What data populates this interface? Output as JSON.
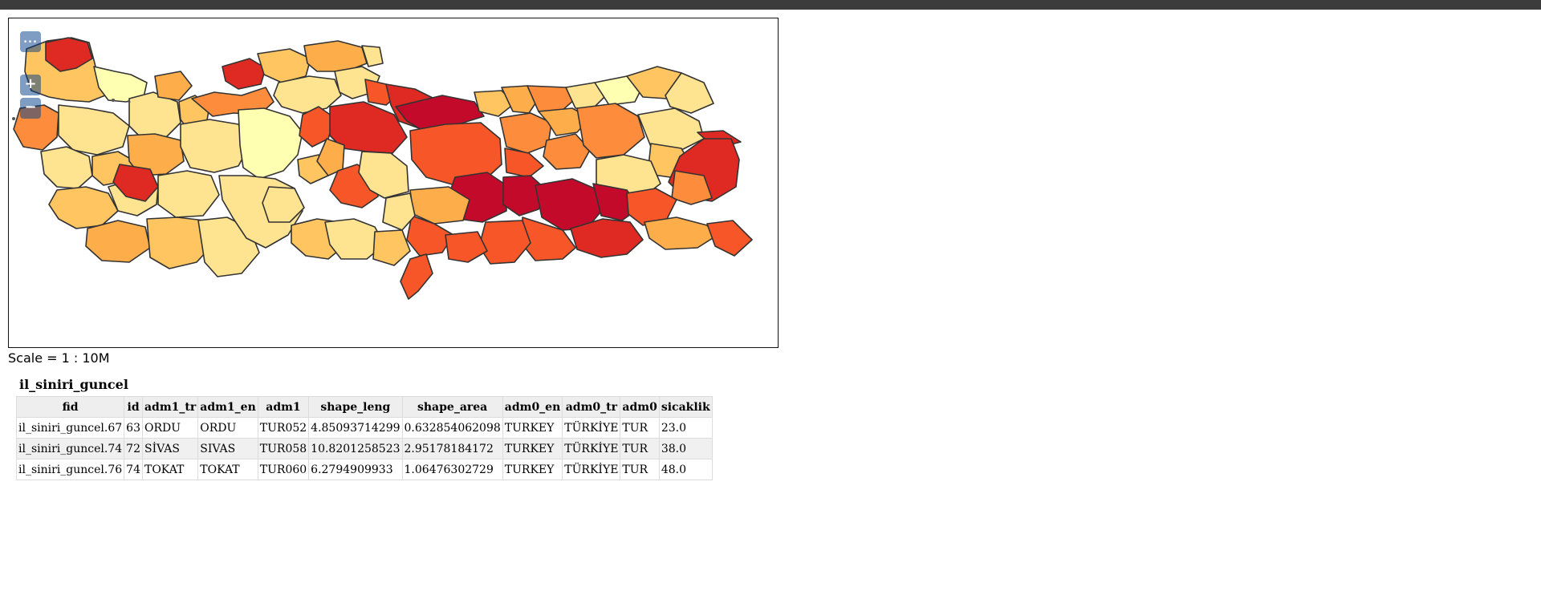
{
  "controls": {
    "more_label": "...",
    "zoom_in_label": "+",
    "zoom_out_label": "−"
  },
  "scale_text": "Scale = 1 : 10M",
  "layer": {
    "name": "il_siniri_guncel",
    "columns": [
      "fid",
      "id",
      "adm1_tr",
      "adm1_en",
      "adm1",
      "shape_leng",
      "shape_area",
      "adm0_en",
      "adm0_tr",
      "adm0",
      "sicaklik"
    ],
    "rows": [
      [
        "il_siniri_guncel.67",
        "63",
        "ORDU",
        "ORDU",
        "TUR052",
        "4.85093714299",
        "0.632854062098",
        "TURKEY",
        "TÜRKİYE",
        "TUR",
        "23.0"
      ],
      [
        "il_siniri_guncel.74",
        "72",
        "SİVAS",
        "SIVAS",
        "TUR058",
        "10.8201258523",
        "2.95178184172",
        "TURKEY",
        "TÜRKİYE",
        "TUR",
        "38.0"
      ],
      [
        "il_siniri_guncel.76",
        "74",
        "TOKAT",
        "TOKAT",
        "TUR060",
        "6.2794909933",
        "1.06476302729",
        "TURKEY",
        "TÜRKİYE",
        "TUR",
        "48.0"
      ]
    ]
  },
  "map_colors": {
    "c1": "#ffffb2",
    "c2": "#fee391",
    "c3": "#fec561",
    "c4": "#fdae4b",
    "c5": "#fd8d3c",
    "c6": "#f65628",
    "c7": "#de2a22",
    "c8": "#c40a2a",
    "border": "#333333"
  }
}
